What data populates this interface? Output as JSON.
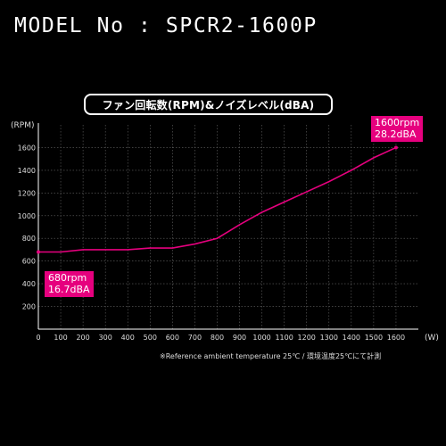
{
  "model_title": "MODEL No : SPCR2-1600P",
  "chart_data": {
    "type": "line",
    "title": "ファン回転数(RPM)&ノイズレベル(dBA)",
    "xlabel": "(W)",
    "ylabel": "(RPM)",
    "xlim": [
      0,
      1700
    ],
    "ylim": [
      0,
      1800
    ],
    "x_ticks": [
      0,
      100,
      200,
      300,
      400,
      500,
      600,
      700,
      800,
      900,
      1000,
      1100,
      1200,
      1300,
      1400,
      1500,
      1600
    ],
    "y_ticks": [
      200,
      400,
      600,
      800,
      1000,
      1200,
      1400,
      1600
    ],
    "grid": true,
    "series_color": "#e6007e",
    "series": [
      {
        "x": [
          0,
          100,
          200,
          300,
          400,
          500,
          600,
          700,
          800,
          900,
          1000,
          1100,
          1200,
          1300,
          1400,
          1500,
          1600
        ],
        "values": [
          680,
          680,
          700,
          700,
          700,
          715,
          715,
          750,
          800,
          920,
          1030,
          1120,
          1210,
          1300,
          1400,
          1510,
          1600
        ]
      }
    ],
    "annotations": [
      {
        "label_rpm": "1600rpm",
        "label_dba": "28.2dBA"
      },
      {
        "label_rpm": "680rpm",
        "label_dba": "16.7dBA"
      }
    ]
  },
  "footnote": "※Reference ambient temperature 25℃ / 環境温度25℃にて計測"
}
